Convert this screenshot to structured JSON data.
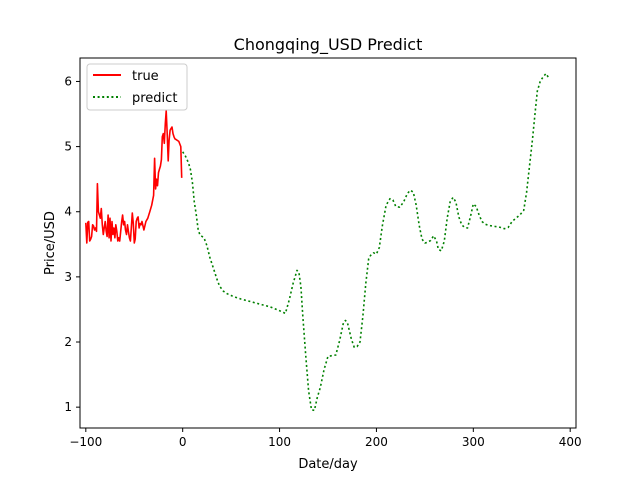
{
  "chart_data": {
    "type": "line",
    "title": "Chongqing_USD Predict",
    "xlabel": "Date/day",
    "ylabel": "Price/USD",
    "xlim": [
      -106,
      406
    ],
    "ylim": [
      0.68,
      6.36
    ],
    "xticks": [
      -100,
      0,
      100,
      200,
      300,
      400
    ],
    "xtick_labels": [
      "−100",
      "0",
      "100",
      "200",
      "300",
      "400"
    ],
    "yticks": [
      1,
      2,
      3,
      4,
      5,
      6
    ],
    "ytick_labels": [
      "1",
      "2",
      "3",
      "4",
      "5",
      "6"
    ],
    "legend": {
      "placement": "top-left"
    },
    "series": [
      {
        "name": "true",
        "color": "#ff0000",
        "style": "solid",
        "points": [
          [
            -100,
            3.83
          ],
          [
            -99,
            3.52
          ],
          [
            -98,
            3.84
          ],
          [
            -97,
            3.85
          ],
          [
            -96,
            3.55
          ],
          [
            -95,
            3.58
          ],
          [
            -94,
            3.62
          ],
          [
            -93,
            3.8
          ],
          [
            -92,
            3.78
          ],
          [
            -91,
            3.72
          ],
          [
            -90,
            3.75
          ],
          [
            -89,
            3.7
          ],
          [
            -88,
            4.43
          ],
          [
            -87,
            4.0
          ],
          [
            -86,
            3.95
          ],
          [
            -85,
            3.9
          ],
          [
            -84,
            4.05
          ],
          [
            -83,
            3.8
          ],
          [
            -82,
            3.65
          ],
          [
            -81,
            3.75
          ],
          [
            -80,
            3.85
          ],
          [
            -79,
            3.7
          ],
          [
            -78,
            3.62
          ],
          [
            -77,
            3.95
          ],
          [
            -76,
            3.6
          ],
          [
            -75,
            3.9
          ],
          [
            -74,
            3.55
          ],
          [
            -73,
            3.85
          ],
          [
            -72,
            3.65
          ],
          [
            -71,
            3.75
          ],
          [
            -70,
            3.6
          ],
          [
            -69,
            3.8
          ],
          [
            -68,
            3.7
          ],
          [
            -67,
            3.55
          ],
          [
            -66,
            3.6
          ],
          [
            -65,
            3.55
          ],
          [
            -64,
            3.7
          ],
          [
            -63,
            3.85
          ],
          [
            -62,
            3.95
          ],
          [
            -61,
            3.8
          ],
          [
            -60,
            3.85
          ],
          [
            -59,
            3.72
          ],
          [
            -58,
            3.65
          ],
          [
            -57,
            3.8
          ],
          [
            -56,
            3.7
          ],
          [
            -55,
            3.6
          ],
          [
            -54,
            3.55
          ],
          [
            -53,
            3.75
          ],
          [
            -52,
            3.98
          ],
          [
            -51,
            3.82
          ],
          [
            -50,
            3.52
          ],
          [
            -49,
            3.58
          ],
          [
            -48,
            3.85
          ],
          [
            -47,
            3.9
          ],
          [
            -46,
            3.92
          ],
          [
            -45,
            3.75
          ],
          [
            -44,
            3.82
          ],
          [
            -43,
            3.8
          ],
          [
            -42,
            3.85
          ],
          [
            -41,
            3.78
          ],
          [
            -40,
            3.72
          ],
          [
            -38,
            3.85
          ],
          [
            -36,
            3.9
          ],
          [
            -34,
            4.0
          ],
          [
            -32,
            4.1
          ],
          [
            -30,
            4.25
          ],
          [
            -29,
            4.82
          ],
          [
            -28,
            4.35
          ],
          [
            -27,
            4.5
          ],
          [
            -26,
            4.4
          ],
          [
            -25,
            4.6
          ],
          [
            -24,
            4.65
          ],
          [
            -23,
            4.7
          ],
          [
            -22,
            4.8
          ],
          [
            -21,
            5.15
          ],
          [
            -20,
            5.2
          ],
          [
            -19,
            5.05
          ],
          [
            -18,
            5.35
          ],
          [
            -17,
            5.55
          ],
          [
            -16,
            5.2
          ],
          [
            -15,
            4.78
          ],
          [
            -14,
            5.1
          ],
          [
            -13,
            5.25
          ],
          [
            -12,
            5.28
          ],
          [
            -11,
            5.3
          ],
          [
            -10,
            5.2
          ],
          [
            -9,
            5.15
          ],
          [
            -8,
            5.12
          ],
          [
            -6,
            5.1
          ],
          [
            -4,
            5.08
          ],
          [
            -2,
            5.0
          ],
          [
            -1,
            4.52
          ]
        ]
      },
      {
        "name": "predict",
        "color": "#008000",
        "style": "dotted",
        "points": [
          [
            0,
            4.92
          ],
          [
            3,
            4.85
          ],
          [
            6,
            4.75
          ],
          [
            8,
            4.65
          ],
          [
            10,
            4.45
          ],
          [
            12,
            4.15
          ],
          [
            14,
            3.95
          ],
          [
            16,
            3.72
          ],
          [
            18,
            3.64
          ],
          [
            20,
            3.62
          ],
          [
            22,
            3.6
          ],
          [
            25,
            3.48
          ],
          [
            28,
            3.3
          ],
          [
            32,
            3.12
          ],
          [
            35,
            2.98
          ],
          [
            38,
            2.86
          ],
          [
            42,
            2.78
          ],
          [
            46,
            2.74
          ],
          [
            52,
            2.7
          ],
          [
            60,
            2.66
          ],
          [
            70,
            2.62
          ],
          [
            80,
            2.58
          ],
          [
            90,
            2.54
          ],
          [
            100,
            2.48
          ],
          [
            106,
            2.44
          ],
          [
            110,
            2.65
          ],
          [
            114,
            2.9
          ],
          [
            118,
            3.1
          ],
          [
            120,
            3.07
          ],
          [
            122,
            2.85
          ],
          [
            124,
            2.4
          ],
          [
            127,
            1.8
          ],
          [
            130,
            1.25
          ],
          [
            133,
            0.96
          ],
          [
            136,
            0.95
          ],
          [
            139,
            1.15
          ],
          [
            142,
            1.3
          ],
          [
            146,
            1.58
          ],
          [
            150,
            1.78
          ],
          [
            154,
            1.79
          ],
          [
            158,
            1.8
          ],
          [
            162,
            2.02
          ],
          [
            166,
            2.3
          ],
          [
            168,
            2.33
          ],
          [
            170,
            2.3
          ],
          [
            174,
            2.05
          ],
          [
            177,
            1.92
          ],
          [
            180,
            1.93
          ],
          [
            183,
            2.0
          ],
          [
            186,
            2.4
          ],
          [
            189,
            2.9
          ],
          [
            192,
            3.28
          ],
          [
            194,
            3.33
          ],
          [
            197,
            3.37
          ],
          [
            200,
            3.35
          ],
          [
            203,
            3.45
          ],
          [
            206,
            3.78
          ],
          [
            210,
            4.1
          ],
          [
            214,
            4.2
          ],
          [
            217,
            4.18
          ],
          [
            220,
            4.08
          ],
          [
            224,
            4.07
          ],
          [
            228,
            4.15
          ],
          [
            232,
            4.28
          ],
          [
            235,
            4.33
          ],
          [
            238,
            4.3
          ],
          [
            241,
            4.1
          ],
          [
            244,
            3.8
          ],
          [
            247,
            3.58
          ],
          [
            250,
            3.52
          ],
          [
            253,
            3.53
          ],
          [
            256,
            3.56
          ],
          [
            259,
            3.63
          ],
          [
            262,
            3.55
          ],
          [
            264,
            3.42
          ],
          [
            267,
            3.4
          ],
          [
            270,
            3.55
          ],
          [
            273,
            3.9
          ],
          [
            276,
            4.15
          ],
          [
            279,
            4.22
          ],
          [
            282,
            4.15
          ],
          [
            285,
            3.92
          ],
          [
            288,
            3.8
          ],
          [
            291,
            3.76
          ],
          [
            294,
            3.75
          ],
          [
            297,
            3.92
          ],
          [
            300,
            4.12
          ],
          [
            303,
            4.08
          ],
          [
            306,
            3.95
          ],
          [
            309,
            3.85
          ],
          [
            312,
            3.81
          ],
          [
            316,
            3.79
          ],
          [
            320,
            3.78
          ],
          [
            324,
            3.77
          ],
          [
            328,
            3.76
          ],
          [
            332,
            3.74
          ],
          [
            336,
            3.76
          ],
          [
            340,
            3.85
          ],
          [
            344,
            3.9
          ],
          [
            348,
            3.95
          ],
          [
            352,
            4.02
          ],
          [
            355,
            4.3
          ],
          [
            358,
            4.7
          ],
          [
            361,
            5.1
          ],
          [
            364,
            5.55
          ],
          [
            366,
            5.85
          ],
          [
            369,
            6.0
          ],
          [
            372,
            6.07
          ],
          [
            375,
            6.12
          ],
          [
            378,
            6.05
          ]
        ]
      }
    ]
  }
}
